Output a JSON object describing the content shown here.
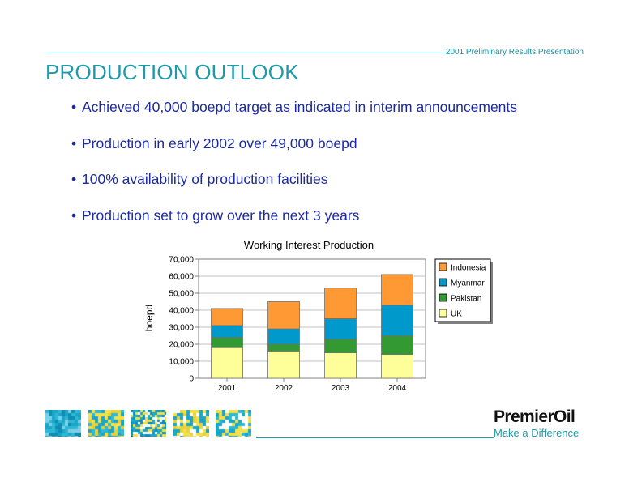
{
  "header": {
    "presentation_name": "2001 Preliminary Results Presentation",
    "title": "PRODUCTION OUTLOOK"
  },
  "bullets": [
    "Achieved 40,000 boepd target as indicated in interim announcements",
    "Production in early 2002 over 49,000 boepd",
    "100% availability of production facilities",
    "Production set to grow over the next 3 years"
  ],
  "bullet_glyph": "•",
  "chart_data": {
    "type": "bar",
    "stacked": true,
    "title": "Working Interest Production",
    "xlabel": "",
    "ylabel": "boepd",
    "categories": [
      "2001",
      "2002",
      "2003",
      "2004"
    ],
    "ylim": [
      0,
      70000
    ],
    "y_ticks": [
      "0",
      "10,000",
      "20,000",
      "30,000",
      "40,000",
      "50,000",
      "60,000",
      "70,000"
    ],
    "grid": true,
    "legend_position": "right",
    "series": [
      {
        "name": "UK",
        "color": "#ffff99",
        "values": [
          18000,
          16000,
          15000,
          14000
        ]
      },
      {
        "name": "Pakistan",
        "color": "#339933",
        "values": [
          6000,
          4000,
          8000,
          11000
        ]
      },
      {
        "name": "Myanmar",
        "color": "#0099cc",
        "values": [
          7000,
          9000,
          12000,
          18000
        ]
      },
      {
        "name": "Indonesia",
        "color": "#ff9933",
        "values": [
          10000,
          16000,
          18000,
          18000
        ]
      }
    ],
    "legend_order": [
      "Indonesia",
      "Myanmar",
      "Pakistan",
      "UK"
    ]
  },
  "footer": {
    "logo_text": "PremierOil",
    "tagline": "Make a Difference",
    "accent_color": "#1f9aa8",
    "tiles": [
      "pattern-tile-icon",
      "pattern-tile-icon",
      "pattern-tile-icon",
      "pattern-tile-icon",
      "pattern-tile-icon"
    ]
  }
}
